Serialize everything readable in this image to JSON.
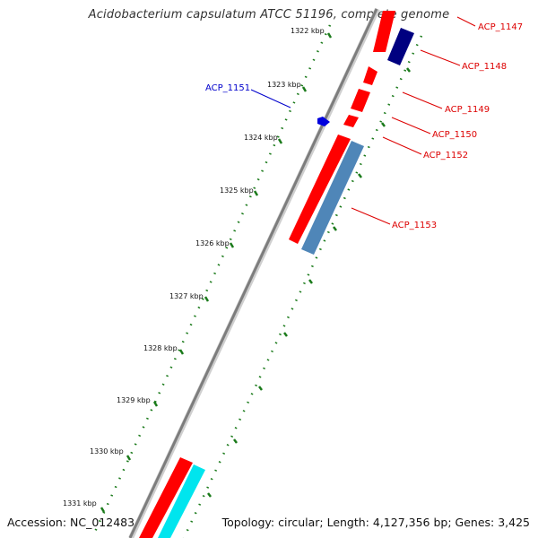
{
  "title": "Acidobacterium capsulatum ATCC 51196, complete genome",
  "footer": {
    "accession": "Accession: NC_012483",
    "summary": "Topology: circular; Length: 4,127,356 bp; Genes: 3,425"
  },
  "colors": {
    "backbone": "#8a8a8a",
    "tick": "#1a7a1a",
    "forward_gene": "#ff0000",
    "reverse_gene": "#0000dd",
    "navy_gene": "#000080",
    "steel_gene": "#4f86b8",
    "cyan_gene": "#00ffff",
    "forward_label": "#dd0000",
    "reverse_label": "#0000cc"
  },
  "scale_labels": [
    "1322 kbp",
    "1323 kbp",
    "1324 kbp",
    "1325 kbp",
    "1326 kbp",
    "1327 kbp",
    "1328 kbp",
    "1329 kbp",
    "1330 kbp",
    "1331 kbp"
  ],
  "gene_labels": [
    {
      "text": "ACP_1147",
      "strand": "forward"
    },
    {
      "text": "ACP_1148",
      "strand": "forward"
    },
    {
      "text": "ACP_1149",
      "strand": "forward"
    },
    {
      "text": "ACP_1150",
      "strand": "forward"
    },
    {
      "text": "ACP_1152",
      "strand": "forward"
    },
    {
      "text": "ACP_1153",
      "strand": "forward"
    },
    {
      "text": "ACP_1151",
      "strand": "reverse"
    }
  ]
}
